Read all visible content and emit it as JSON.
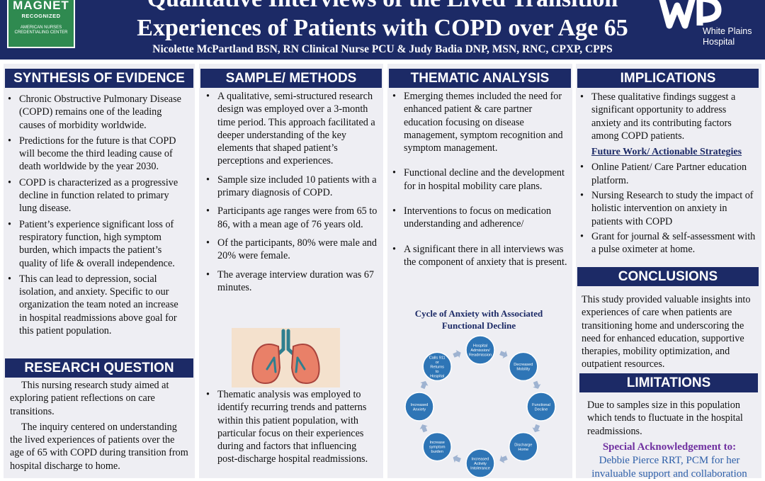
{
  "header": {
    "title_line1": "Qualitative Interviews of the Lived Transition",
    "title_line2": "Experiences of Patients with COPD over Age 65",
    "authors": "Nicolette McPartland BSN, RN Clinical Nurse PCU & Judy Badia DNP, MSN, RNC, CPXP, CPPS",
    "magnet_line1": "MAGNET",
    "magnet_line2": "RECOGNIZED",
    "magnet_line3": "AMERICAN NURSES CREDENTIALING CENTER",
    "hospital_line1": "White Plains",
    "hospital_line2": "Hospital"
  },
  "synthesis": {
    "heading": "SYNTHESIS OF EVIDENCE",
    "bullets": [
      "Chronic Obstructive Pulmonary Disease (COPD) remains one of the leading causes of morbidity worldwide.",
      "Predictions for the future is that COPD will become the third leading cause of death worldwide by the year 2030.",
      "COPD is characterized as a progressive decline in function related to primary lung disease.",
      "Patient’s experience significant loss of respiratory function, high symptom burden, which impacts the patient’s quality of life & overall independence.",
      "This can lead to depression, social isolation, and anxiety. Specific to our organization the team noted an increase in hospital readmissions above goal for this patient population."
    ]
  },
  "research_question": {
    "heading": "RESEARCH QUESTION",
    "para1": "This nursing research study aimed at exploring patient reflections  on care transitions.",
    "para2": "The inquiry centered on understanding the lived experiences of patients over the age of 65 with COPD during transition from hospital discharge to home."
  },
  "methods": {
    "heading": "SAMPLE/ METHODS",
    "bullets": [
      "A qualitative, semi-structured research design was employed over a 3-month time period. This approach facilitated a deeper understanding of the key elements that shaped patient’s perceptions and experiences.",
      "Sample size included 10 patients with a primary diagnosis of COPD.",
      "Participants age ranges were from 65 to 86, with a mean age of 76 years old.",
      "Of the participants, 80% were male and 20% were female.",
      "The average interview duration was 67 minutes."
    ],
    "bullet_after_image": "Thematic analysis was employed to identify recurring trends and patterns within this patient population, with particular focus on their experiences during and factors that influencing post-discharge hospital readmissions."
  },
  "thematic": {
    "heading": "THEMATIC ANALYSIS",
    "bullets": [
      "Emerging themes included the need for enhanced patient & care partner education focusing on disease management, symptom recognition and symptom management.",
      "Functional decline and the development for in hospital mobility care plans.",
      "Interventions to focus on medication understanding and adherence/",
      "A significant there in all interviews was the component of anxiety that is present."
    ],
    "cycle_title": "Cycle of Anxiety with Associated Functional Decline",
    "cycle_nodes": [
      "Hospital Admission/ Readmission",
      "Decreased Mobility",
      "Functional Decline",
      "Discharge Home",
      "Increased Activity Intolerance",
      "Increase symptom burden",
      "Increased Anxiety",
      "Calls 911 or Returns to Hospital"
    ]
  },
  "implications": {
    "heading": "IMPLICATIONS",
    "bullet": "These qualitative findings suggest a significant opportunity to address anxiety and its contributing factors among COPD patients.",
    "future_heading": "Future Work/ Actionable Strategies",
    "future_bullets": [
      "Online Patient/ Care Partner education platform.",
      "Nursing Research to study the impact of holistic intervention on anxiety in patients with COPD",
      "Grant for journal & self-assessment with a pulse oximeter at home."
    ]
  },
  "conclusions": {
    "heading": "CONCLUSIONS",
    "text": "This study provided valuable insights into experiences of care when patients are transitioning home and underscoring the need for enhanced education, supportive therapies, mobility optimization, and outpatient resources."
  },
  "limitations": {
    "heading": "LIMITATIONS",
    "text": "Due to samples size in this population which tends to fluctuate in the hospital readmissions."
  },
  "acknowledgement": {
    "heading": "Special Acknowledgement to:",
    "text": "Debbie Pierce RRT, PCM for her invaluable support and collaboration"
  },
  "colors": {
    "navy": "#1c2a66",
    "column_bg": "#eeeef3",
    "magnet_green": "#2f8a50",
    "cycle_blue": "#2e75b6",
    "ack_purple": "#7030a0"
  }
}
